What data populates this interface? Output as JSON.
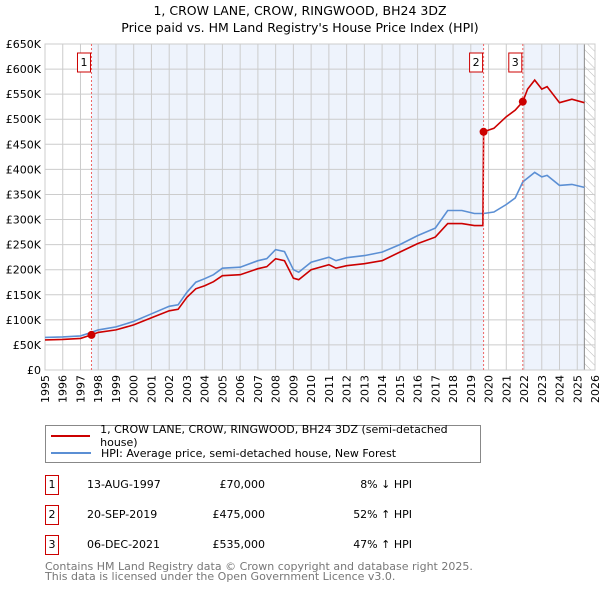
{
  "title": "1, CROW LANE, CROW, RINGWOOD, BH24 3DZ",
  "subtitle": "Price paid vs. HM Land Registry's House Price Index (HPI)",
  "colors": {
    "property": "#cc0000",
    "hpi": "#5b8fd4",
    "shade": "#eef3fc",
    "grid": "#cccccc"
  },
  "chart_data": {
    "type": "line",
    "title": "1, CROW LANE, CROW, RINGWOOD, BH24 3DZ",
    "subtitle": "Price paid vs. HM Land Registry's House Price Index (HPI)",
    "xlim": [
      1995,
      2026
    ],
    "ylim": [
      0,
      650000
    ],
    "grid": true,
    "x_ticks": [
      "1995",
      "1996",
      "1997",
      "1998",
      "1999",
      "2000",
      "2001",
      "2002",
      "2003",
      "2004",
      "2005",
      "2006",
      "2007",
      "2008",
      "2009",
      "2010",
      "2011",
      "2012",
      "2013",
      "2014",
      "2015",
      "2016",
      "2017",
      "2018",
      "2019",
      "2020",
      "2021",
      "2022",
      "2023",
      "2024",
      "2025",
      "2026"
    ],
    "y_ticks": [
      {
        "v": 0,
        "label": "£0"
      },
      {
        "v": 50000,
        "label": "£50K"
      },
      {
        "v": 100000,
        "label": "£100K"
      },
      {
        "v": 150000,
        "label": "£150K"
      },
      {
        "v": 200000,
        "label": "£200K"
      },
      {
        "v": 250000,
        "label": "£250K"
      },
      {
        "v": 300000,
        "label": "£300K"
      },
      {
        "v": 350000,
        "label": "£350K"
      },
      {
        "v": 400000,
        "label": "£400K"
      },
      {
        "v": 450000,
        "label": "£450K"
      },
      {
        "v": 500000,
        "label": "£500K"
      },
      {
        "v": 550000,
        "label": "£550K"
      },
      {
        "v": 600000,
        "label": "£600K"
      },
      {
        "v": 650000,
        "label": "£650K"
      }
    ],
    "data_end": 2025.4,
    "series": [
      {
        "name": "1, CROW LANE, CROW, RINGWOOD, BH24 3DZ (semi-detached house)",
        "color": "#cc0000",
        "points": [
          [
            1995,
            60
          ],
          [
            1996,
            61
          ],
          [
            1997,
            63
          ],
          [
            1997.62,
            70
          ],
          [
            1998,
            75
          ],
          [
            1999,
            80
          ],
          [
            2000,
            90
          ],
          [
            2001,
            104
          ],
          [
            2002,
            118
          ],
          [
            2002.5,
            121
          ],
          [
            2003,
            145
          ],
          [
            2003.5,
            162
          ],
          [
            2004,
            168
          ],
          [
            2004.5,
            176
          ],
          [
            2005,
            188
          ],
          [
            2006,
            190
          ],
          [
            2007,
            202
          ],
          [
            2007.5,
            206
          ],
          [
            2008,
            222
          ],
          [
            2008.5,
            218
          ],
          [
            2009,
            183
          ],
          [
            2009.3,
            180
          ],
          [
            2010,
            200
          ],
          [
            2011,
            210
          ],
          [
            2011.4,
            203
          ],
          [
            2012,
            208
          ],
          [
            2013,
            212
          ],
          [
            2014,
            218
          ],
          [
            2015,
            235
          ],
          [
            2016,
            252
          ],
          [
            2017,
            265
          ],
          [
            2017.7,
            292
          ],
          [
            2018.5,
            292
          ],
          [
            2019.2,
            288
          ],
          [
            2019.68,
            288
          ],
          [
            2019.72,
            475
          ],
          [
            2020.3,
            482
          ],
          [
            2021,
            505
          ],
          [
            2021.5,
            518
          ],
          [
            2021.93,
            535
          ],
          [
            2022.2,
            560
          ],
          [
            2022.6,
            578
          ],
          [
            2023,
            560
          ],
          [
            2023.3,
            565
          ],
          [
            2024,
            533
          ],
          [
            2024.7,
            540
          ],
          [
            2025.4,
            533
          ]
        ]
      },
      {
        "name": "HPI: Average price, semi-detached house, New Forest",
        "color": "#5b8fd4",
        "points": [
          [
            1995,
            65
          ],
          [
            1996,
            66
          ],
          [
            1997,
            68
          ],
          [
            1997.62,
            75
          ],
          [
            1998,
            80
          ],
          [
            1999,
            86
          ],
          [
            2000,
            97
          ],
          [
            2001,
            112
          ],
          [
            2002,
            127
          ],
          [
            2002.5,
            130
          ],
          [
            2003,
            155
          ],
          [
            2003.5,
            175
          ],
          [
            2004,
            182
          ],
          [
            2004.5,
            190
          ],
          [
            2005,
            203
          ],
          [
            2006,
            205
          ],
          [
            2007,
            218
          ],
          [
            2007.5,
            222
          ],
          [
            2008,
            240
          ],
          [
            2008.5,
            236
          ],
          [
            2009,
            200
          ],
          [
            2009.3,
            195
          ],
          [
            2010,
            215
          ],
          [
            2011,
            225
          ],
          [
            2011.4,
            218
          ],
          [
            2012,
            224
          ],
          [
            2013,
            228
          ],
          [
            2014,
            235
          ],
          [
            2015,
            250
          ],
          [
            2016,
            268
          ],
          [
            2017,
            283
          ],
          [
            2017.7,
            318
          ],
          [
            2018.5,
            318
          ],
          [
            2019.2,
            312
          ],
          [
            2019.72,
            312
          ],
          [
            2020.3,
            315
          ],
          [
            2021,
            330
          ],
          [
            2021.5,
            343
          ],
          [
            2021.93,
            375
          ],
          [
            2022.6,
            394
          ],
          [
            2023,
            385
          ],
          [
            2023.3,
            388
          ],
          [
            2024,
            368
          ],
          [
            2024.7,
            370
          ],
          [
            2025.4,
            364
          ]
        ]
      }
    ],
    "value_unit": "thousand GBP",
    "sales": [
      {
        "n": "1",
        "x": 1997.62,
        "value": 70
      },
      {
        "n": "2",
        "x": 2019.72,
        "value": 475
      },
      {
        "n": "3",
        "x": 2021.93,
        "value": 535
      }
    ]
  },
  "legend": {
    "property": "1, CROW LANE, CROW, RINGWOOD, BH24 3DZ (semi-detached house)",
    "hpi": "HPI: Average price, semi-detached house, New Forest"
  },
  "sales_table": [
    {
      "n": "1",
      "date": "13-AUG-1997",
      "price": "£70,000",
      "hpi": "8% ↓ HPI"
    },
    {
      "n": "2",
      "date": "20-SEP-2019",
      "price": "£475,000",
      "hpi": "52% ↑ HPI"
    },
    {
      "n": "3",
      "date": "06-DEC-2021",
      "price": "£535,000",
      "hpi": "47% ↑ HPI"
    }
  ],
  "footer": {
    "line1": "Contains HM Land Registry data © Crown copyright and database right 2025.",
    "line2": "This data is licensed under the Open Government Licence v3.0."
  }
}
